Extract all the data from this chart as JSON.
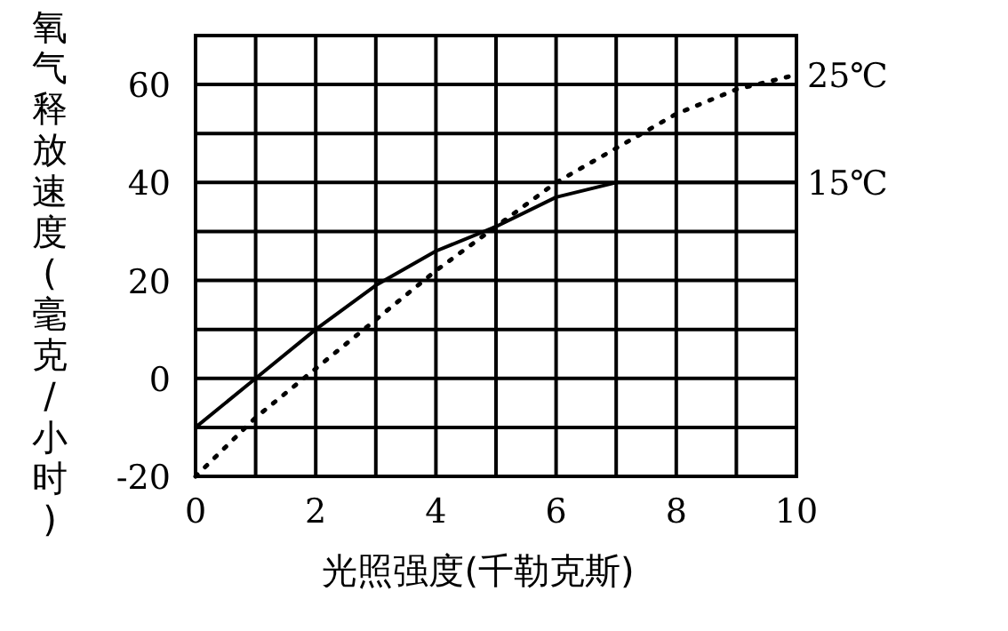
{
  "chart_data": {
    "type": "line",
    "xlabel": "光照强度(千勒克斯)",
    "ylabel": "氧气释放速度(毫克/小时)",
    "x": [
      0,
      1,
      2,
      3,
      4,
      5,
      6,
      7,
      8,
      9,
      10
    ],
    "xlim": [
      0,
      10
    ],
    "ylim": [
      -20,
      70
    ],
    "xticks": [
      0,
      {
        "value": 1,
        "label": null
      },
      2,
      {
        "value": 3,
        "label": null
      },
      4,
      {
        "value": 5,
        "label": null
      },
      6,
      {
        "value": 7,
        "label": null
      },
      8,
      {
        "value": 9,
        "label": null
      },
      10
    ],
    "yticks": [
      -20,
      {
        "value": -10,
        "label": null
      },
      0,
      {
        "value": 10,
        "label": null
      },
      20,
      {
        "value": 30,
        "label": null
      },
      40,
      {
        "value": 50,
        "label": null
      },
      60,
      {
        "value": 70,
        "label": null
      }
    ],
    "grid": true,
    "series": [
      {
        "name": "25℃",
        "color": "#000000",
        "line_style": "dotted",
        "values": [
          -20,
          -8,
          2,
          12,
          22,
          31,
          40,
          47,
          54,
          59,
          62
        ]
      },
      {
        "name": "15℃",
        "color": "#000000",
        "line_style": "solid",
        "values": [
          -10,
          0,
          10,
          19,
          26,
          31,
          37,
          40,
          40,
          40,
          40
        ]
      }
    ]
  }
}
